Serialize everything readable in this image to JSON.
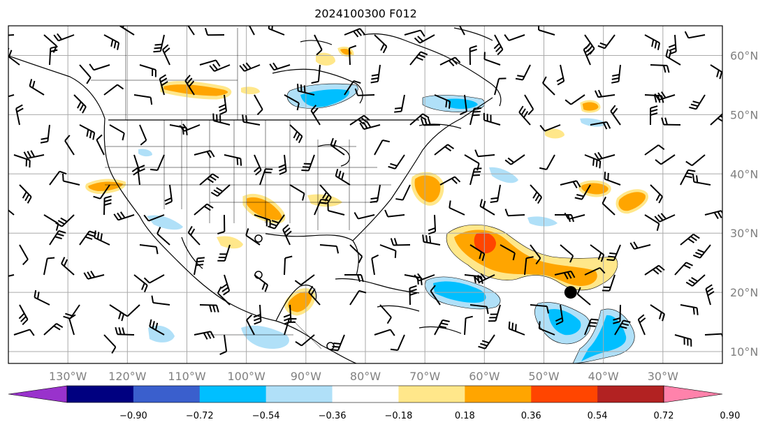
{
  "title": "2024100300 F012",
  "map": {
    "lon_range": [
      -140,
      -20
    ],
    "lat_range": [
      8,
      65
    ],
    "lon_ticks": [
      "130°W",
      "120°W",
      "110°W",
      "100°W",
      "90°W",
      "80°W",
      "70°W",
      "60°W",
      "50°W",
      "40°W",
      "30°W"
    ],
    "lat_ticks": [
      "60°N",
      "50°N",
      "40°N",
      "30°N",
      "20°N",
      "10°N"
    ],
    "grid": true,
    "features": [
      "coastlines",
      "country-borders",
      "us-state-borders",
      "wind-barbs",
      "filled-contours"
    ],
    "marker": {
      "name": "storm-center-marker",
      "lon": -45.5,
      "lat": 20
    }
  },
  "colorbar": {
    "levels": [
      "−0.90",
      "−0.72",
      "−0.54",
      "−0.36",
      "−0.18",
      "0.18",
      "0.36",
      "0.54",
      "0.72",
      "0.90"
    ],
    "colors": [
      "#9932cc",
      "#000080",
      "#3a5fcd",
      "#00bfff",
      "#b0e0f8",
      "#ffffff",
      "#ffe78a",
      "#ffa500",
      "#ff4500",
      "#b22222",
      "#ff82ab"
    ],
    "extend": "both"
  }
}
